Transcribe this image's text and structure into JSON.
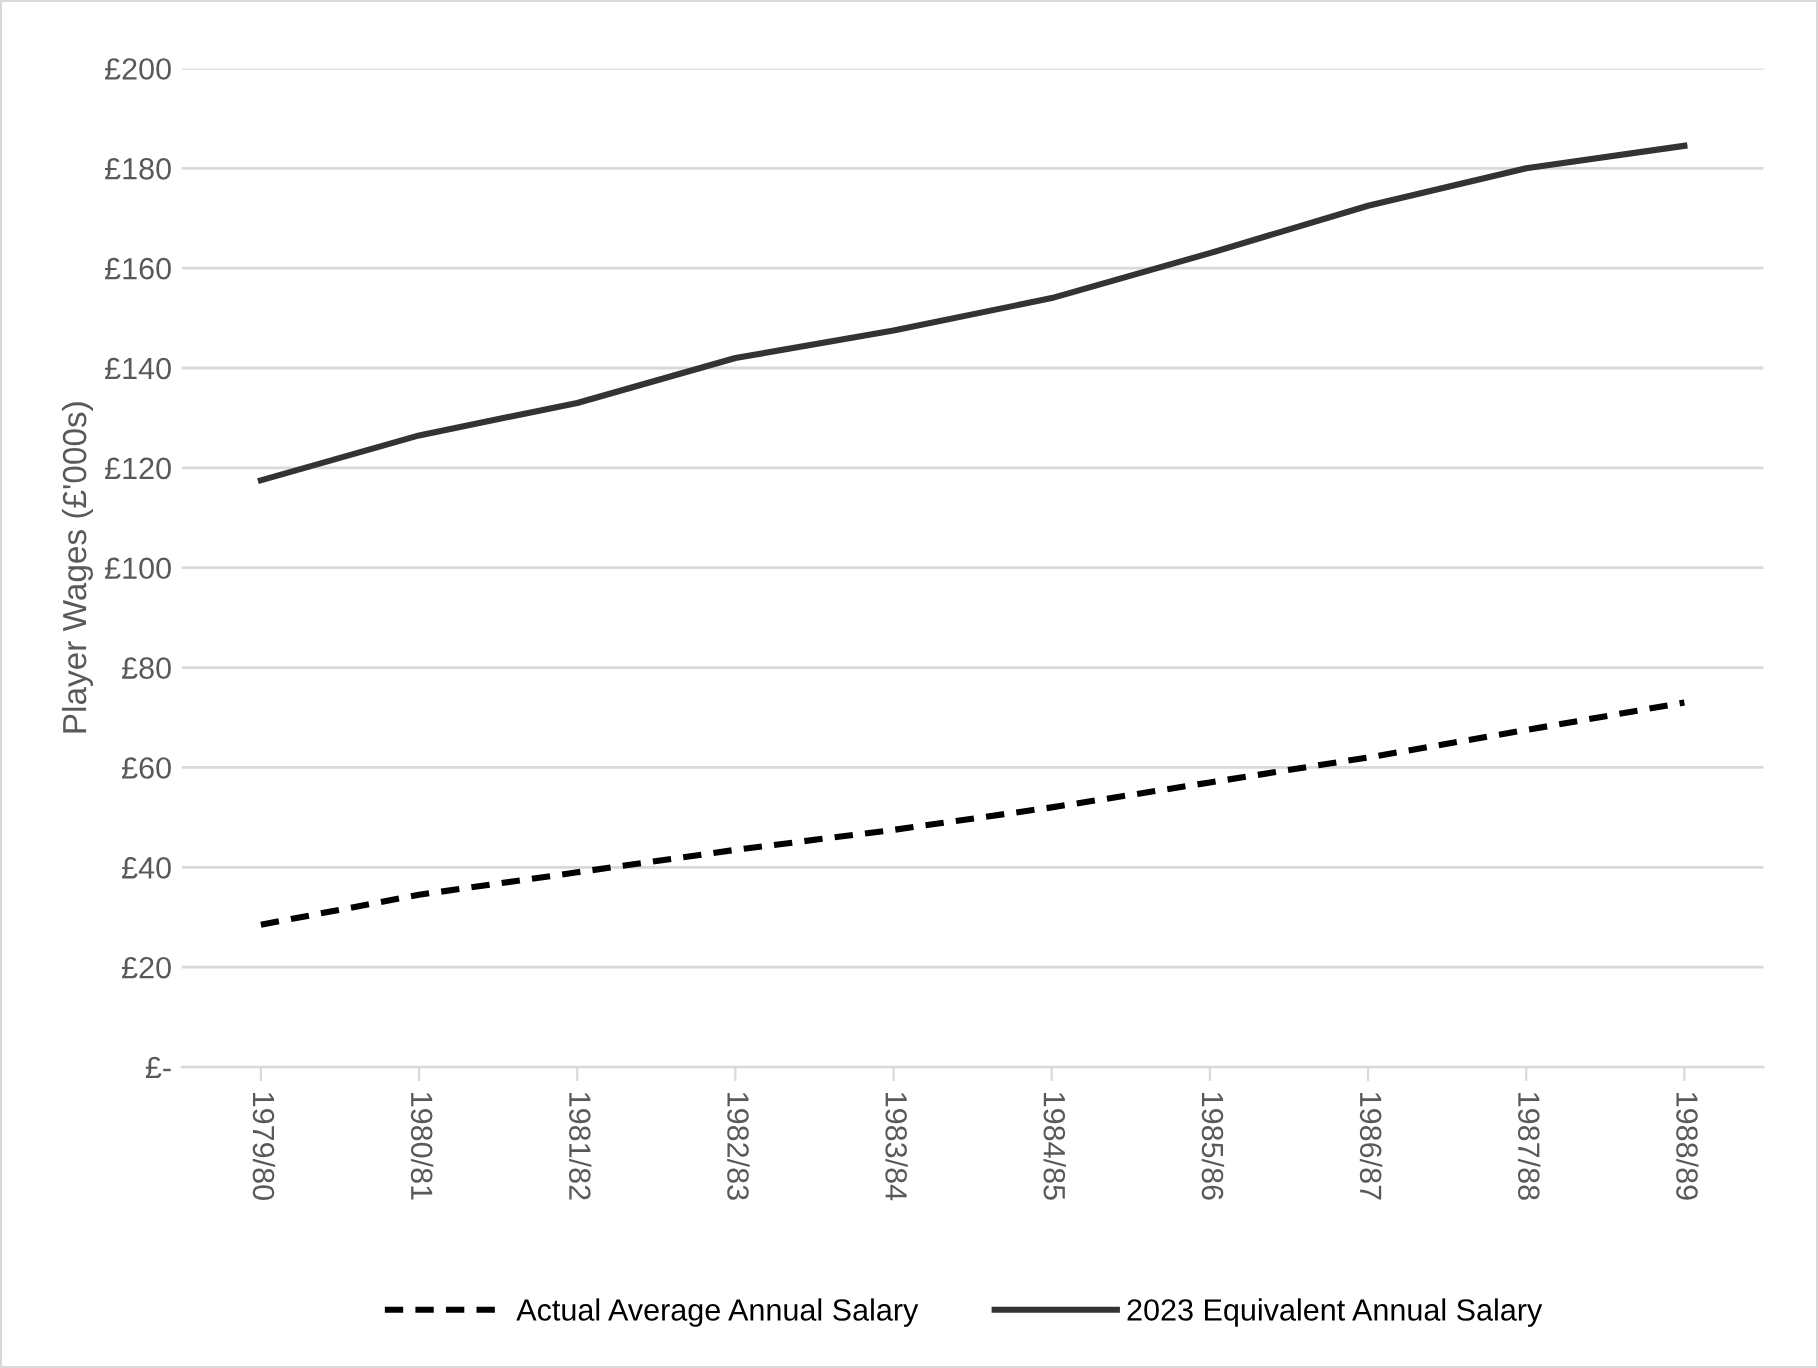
{
  "chart_data": {
    "type": "line",
    "ylabel": "Player Wages (£'000s)",
    "categories": [
      "1979/80",
      "1980/81",
      "1981/82",
      "1982/83",
      "1983/84",
      "1984/85",
      "1985/86",
      "1986/87",
      "1987/88",
      "1988/89"
    ],
    "series": [
      {
        "name": "Actual Average Annual Salary",
        "color": "#000000",
        "line_style": "dashed",
        "values": [
          28.5,
          34.5,
          39,
          43.5,
          47.5,
          52,
          57,
          62,
          67.5,
          73
        ]
      },
      {
        "name": "2023 Equivalent Annual Salary",
        "color": "#333333",
        "line_style": "solid",
        "values": [
          117.5,
          126.5,
          133,
          142,
          147.5,
          154,
          163,
          172.5,
          180,
          184.5
        ]
      }
    ],
    "ylim": [
      0,
      200
    ],
    "yticks": [
      {
        "value": 0,
        "label": "£-"
      },
      {
        "value": 20,
        "label": "£20"
      },
      {
        "value": 40,
        "label": "£40"
      },
      {
        "value": 60,
        "label": "£60"
      },
      {
        "value": 80,
        "label": "£80"
      },
      {
        "value": 100,
        "label": "£100"
      },
      {
        "value": 120,
        "label": "£120"
      },
      {
        "value": 140,
        "label": "£140"
      },
      {
        "value": 160,
        "label": "£160"
      },
      {
        "value": 180,
        "label": "£180"
      },
      {
        "value": 200,
        "label": "£200"
      }
    ],
    "grid": "y",
    "legend": "bottom",
    "marker": "none"
  }
}
